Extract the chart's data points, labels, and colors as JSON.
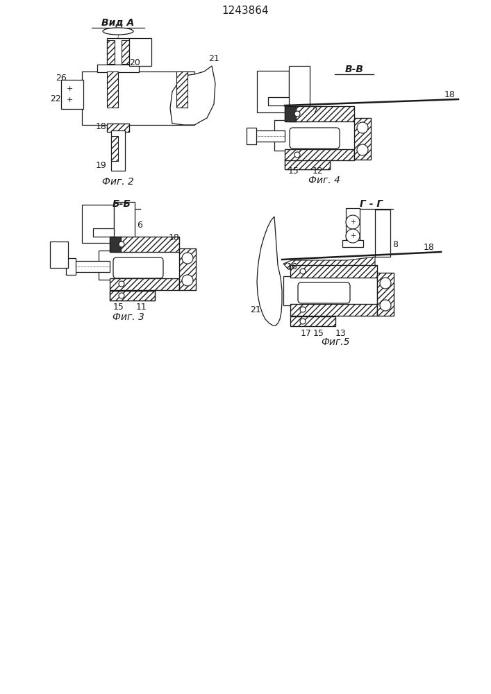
{
  "title": "1243864",
  "fig2_label": "Вид А",
  "fig2_caption": "Фиг. 2",
  "fig3_caption": "Фиг. 3",
  "fig4_caption": "Фиг. 4",
  "fig4_label": "В-В",
  "fig3_label": "Б-Б",
  "fig5_label": "Г - Г",
  "fig5_caption": "Фиг.5",
  "bg_color": "#ffffff",
  "line_color": "#1a1a1a",
  "font_size_label": 10,
  "font_size_num": 9,
  "font_size_title": 11
}
